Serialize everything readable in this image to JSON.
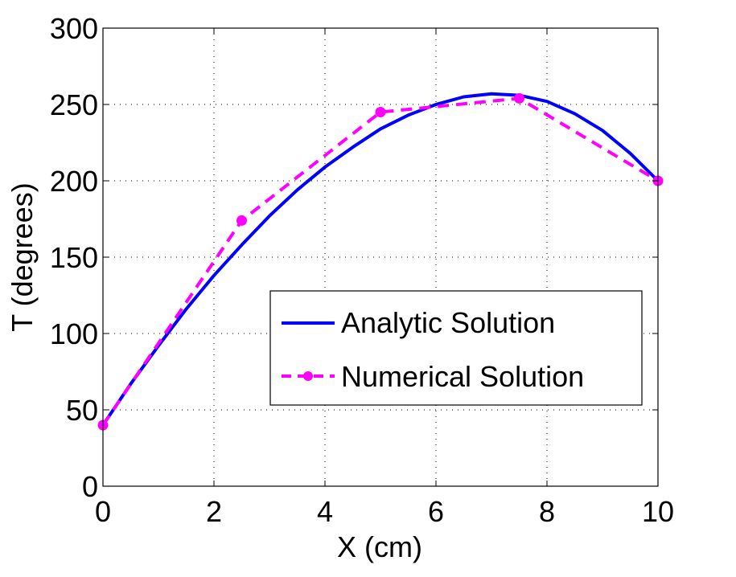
{
  "chart_data": {
    "type": "line",
    "xlabel": "X (cm)",
    "ylabel": "T (degrees)",
    "xlim": [
      0,
      10
    ],
    "ylim": [
      0,
      300
    ],
    "xticks": [
      0,
      2,
      4,
      6,
      8,
      10
    ],
    "yticks": [
      0,
      50,
      100,
      150,
      200,
      250,
      300
    ],
    "grid": true,
    "legend_position": "center-right",
    "series": [
      {
        "name": "Analytic Solution",
        "style": "solid",
        "color": "#0000ff",
        "markers": false,
        "x": [
          0,
          0.5,
          1,
          1.5,
          2,
          2.5,
          3,
          3.5,
          4,
          4.5,
          5,
          5.5,
          6,
          6.5,
          7,
          7.5,
          8,
          8.5,
          9,
          9.5,
          10
        ],
        "y": [
          40,
          67,
          92,
          116,
          138,
          158,
          177,
          194,
          209,
          222,
          234,
          243,
          250,
          255,
          257,
          256,
          252,
          244,
          233,
          218,
          200
        ]
      },
      {
        "name": "Numerical Solution",
        "style": "dashed",
        "color": "#ff00ff",
        "markers": true,
        "x": [
          0,
          2.5,
          5,
          7.5,
          10
        ],
        "y": [
          40,
          174,
          245,
          254,
          200
        ]
      }
    ]
  }
}
